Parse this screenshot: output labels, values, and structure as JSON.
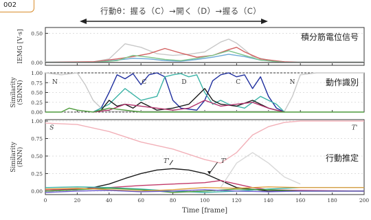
{
  "figure_tag": "002",
  "header": "行動θ：握る（C）→開く（D）→握る（C）",
  "chart_data": [
    {
      "type": "line",
      "ylabel": "IEMG [V·s]",
      "panel_title": "積分筋電位信号",
      "ylim": [
        -0.05,
        0.6
      ],
      "yticks": [
        "0.50",
        "0.00"
      ],
      "ytick_values": [
        0.5,
        0.0
      ],
      "series": [
        {
          "color": "#c8c8c8",
          "x": [
            0,
            30,
            40,
            50,
            60,
            70,
            80,
            90,
            100,
            110,
            115,
            120,
            125,
            130,
            140,
            150,
            160,
            200
          ],
          "values": [
            0.01,
            0.01,
            0.06,
            0.32,
            0.26,
            0.15,
            0.12,
            0.14,
            0.18,
            0.35,
            0.4,
            0.33,
            0.22,
            0.1,
            0.04,
            0.01,
            0.01,
            0.01
          ]
        },
        {
          "color": "#d26060",
          "x": [
            0,
            30,
            45,
            55,
            65,
            75,
            85,
            95,
            105,
            115,
            120,
            125,
            135,
            150,
            160,
            200
          ],
          "values": [
            0.0,
            0.01,
            0.06,
            0.1,
            0.15,
            0.24,
            0.16,
            0.09,
            0.12,
            0.22,
            0.26,
            0.18,
            0.06,
            0.01,
            0.0,
            0.0
          ]
        },
        {
          "color": "#6aa8d6",
          "x": [
            0,
            30,
            45,
            55,
            65,
            75,
            85,
            95,
            105,
            115,
            125,
            135,
            150,
            200
          ],
          "values": [
            0.0,
            0.0,
            0.04,
            0.07,
            0.06,
            0.03,
            0.02,
            0.05,
            0.09,
            0.14,
            0.1,
            0.04,
            0.0,
            0.0
          ]
        },
        {
          "color": "#7cc48a",
          "x": [
            0,
            30,
            45,
            55,
            65,
            75,
            85,
            95,
            105,
            115,
            125,
            135,
            150,
            200
          ],
          "values": [
            0.0,
            0.0,
            0.03,
            0.12,
            0.09,
            0.05,
            0.03,
            0.07,
            0.12,
            0.2,
            0.12,
            0.04,
            0.0,
            0.0
          ]
        },
        {
          "color": "#555555",
          "x": [
            0,
            200
          ],
          "values": [
            0.0,
            0.0
          ]
        }
      ]
    },
    {
      "type": "line",
      "ylabel": "Similarity (SDNN)",
      "panel_title": "動作識別",
      "ylim": [
        0,
        1.0
      ],
      "yticks": [
        "1.00",
        "0.75",
        "0.50",
        "0.25",
        "0.00"
      ],
      "ytick_values": [
        1.0,
        0.75,
        0.5,
        0.25,
        0.0
      ],
      "annotations": [
        {
          "text": "N",
          "x": 6,
          "y": 0.72
        },
        {
          "text": "C",
          "x": 62,
          "y": 0.72
        },
        {
          "text": "D",
          "x": 87,
          "y": 0.72
        },
        {
          "text": "C",
          "x": 121,
          "y": 0.72
        },
        {
          "text": "N",
          "x": 155,
          "y": 0.72
        }
      ],
      "series": [
        {
          "color": "#c8c8c8",
          "x": [
            0,
            10,
            20,
            25,
            30,
            35,
            40,
            150,
            155,
            160,
            170,
            200
          ],
          "values": [
            1.0,
            0.95,
            1.0,
            0.7,
            0.3,
            0.1,
            0.02,
            0.02,
            0.4,
            0.95,
            1.0,
            1.0
          ]
        },
        {
          "color": "#1f2f9e",
          "x": [
            30,
            35,
            40,
            45,
            50,
            55,
            60,
            65,
            70,
            75,
            80,
            85,
            95,
            100,
            105,
            110,
            115,
            120,
            125,
            130,
            135,
            140,
            145,
            150
          ],
          "values": [
            0.0,
            0.1,
            0.5,
            0.95,
            0.85,
            0.98,
            0.7,
            0.95,
            1.0,
            0.9,
            0.3,
            0.1,
            0.05,
            0.3,
            0.8,
            0.95,
            1.0,
            0.9,
            0.95,
            0.6,
            0.9,
            0.4,
            0.1,
            0.0
          ]
        },
        {
          "color": "#3bb3a6",
          "x": [
            30,
            40,
            50,
            60,
            70,
            75,
            80,
            85,
            90,
            95,
            100,
            105,
            110,
            115,
            125,
            135,
            145,
            150
          ],
          "values": [
            0.0,
            0.2,
            0.6,
            0.3,
            0.4,
            0.9,
            0.95,
            0.98,
            0.9,
            0.95,
            0.5,
            0.2,
            0.3,
            0.2,
            0.1,
            0.4,
            0.2,
            0.0
          ]
        },
        {
          "color": "#1a1a1a",
          "x": [
            30,
            35,
            40,
            45,
            50,
            55,
            60,
            65,
            70,
            80,
            90,
            95,
            100,
            105,
            110,
            120,
            130,
            140,
            145,
            150
          ],
          "values": [
            0.0,
            0.05,
            0.3,
            0.15,
            0.2,
            0.1,
            0.25,
            0.15,
            0.05,
            0.1,
            0.2,
            0.4,
            0.6,
            0.3,
            0.2,
            0.15,
            0.3,
            0.1,
            0.05,
            0.0
          ]
        },
        {
          "color": "#b0306a",
          "x": [
            30,
            40,
            50,
            60,
            70,
            80,
            90,
            100,
            110,
            120,
            130,
            140,
            150
          ],
          "values": [
            0.0,
            0.05,
            0.2,
            0.15,
            0.1,
            0.05,
            0.1,
            0.3,
            0.15,
            0.2,
            0.25,
            0.1,
            0.0
          ]
        },
        {
          "color": "#4c9a3a",
          "x": [
            0,
            10,
            15,
            20,
            30,
            40,
            50,
            60,
            150,
            160,
            200
          ],
          "values": [
            0.0,
            0.0,
            0.1,
            0.05,
            0.0,
            0.1,
            0.05,
            0.0,
            0.0,
            0.0,
            0.0
          ]
        }
      ]
    },
    {
      "type": "line",
      "ylabel": "Similarity (RNN)",
      "panel_title": "行動推定",
      "ylim": [
        -0.05,
        1.02
      ],
      "yticks": [
        "1.00",
        "0.75",
        "0.50",
        "0.25",
        "0.00"
      ],
      "ytick_values": [
        1.0,
        0.75,
        0.5,
        0.25,
        0.0
      ],
      "xlabel": "Time [frame]",
      "xlim": [
        0,
        200
      ],
      "xticks": [
        "0",
        "20",
        "40",
        "60",
        "80",
        "100",
        "120",
        "140",
        "160",
        "180",
        "200"
      ],
      "xtick_values": [
        0,
        20,
        40,
        60,
        80,
        100,
        120,
        140,
        160,
        180,
        200
      ],
      "annotations": [
        {
          "text": "S",
          "x": 4,
          "y": 0.88
        },
        {
          "text": "T'",
          "x": 194,
          "y": 0.88
        },
        {
          "text": "T'",
          "x": 76,
          "y": 0.4
        },
        {
          "text": "T'",
          "x": 112,
          "y": 0.4
        }
      ],
      "series": [
        {
          "color": "#f2b0b8",
          "x": [
            0,
            20,
            40,
            60,
            80,
            100,
            110,
            120,
            130,
            140,
            150,
            160,
            200
          ],
          "values": [
            0.97,
            0.95,
            0.85,
            0.7,
            0.6,
            0.45,
            0.4,
            0.55,
            0.8,
            0.92,
            0.98,
            1.0,
            1.0
          ]
        },
        {
          "color": "#1a1a1a",
          "x": [
            0,
            20,
            30,
            40,
            50,
            60,
            70,
            80,
            90,
            100,
            105,
            110,
            120,
            140,
            160,
            200
          ],
          "values": [
            0.0,
            0.02,
            0.05,
            0.1,
            0.18,
            0.25,
            0.3,
            0.32,
            0.3,
            0.25,
            0.2,
            0.15,
            0.05,
            0.0,
            0.0,
            0.0
          ]
        },
        {
          "color": "#c23a6a",
          "x": [
            0,
            20,
            40,
            60,
            80,
            100,
            110,
            120,
            130,
            140,
            160,
            200
          ],
          "values": [
            0.02,
            0.03,
            0.05,
            0.08,
            0.1,
            0.12,
            0.15,
            0.1,
            0.05,
            0.02,
            0.01,
            0.0
          ]
        },
        {
          "color": "#3bb3a6",
          "x": [
            0,
            20,
            40,
            60,
            80,
            100,
            120,
            140,
            160,
            200
          ],
          "values": [
            0.05,
            0.06,
            0.05,
            0.03,
            0.0,
            -0.02,
            0.0,
            0.03,
            0.05,
            0.05
          ]
        },
        {
          "color": "#4c9a3a",
          "x": [
            0,
            20,
            40,
            60,
            80,
            100,
            120,
            140,
            160,
            200
          ],
          "values": [
            0.0,
            0.02,
            0.04,
            0.02,
            -0.02,
            0.0,
            0.03,
            0.02,
            0.0,
            0.0
          ]
        },
        {
          "color": "#e0a040",
          "x": [
            0,
            20,
            40,
            60,
            80,
            100,
            120,
            140,
            160,
            200
          ],
          "values": [
            0.03,
            0.04,
            0.02,
            0.0,
            0.02,
            0.05,
            0.04,
            0.06,
            0.05,
            0.05
          ]
        },
        {
          "color": "#6a5acd",
          "x": [
            0,
            20,
            40,
            60,
            80,
            100,
            120,
            140,
            160,
            200
          ],
          "values": [
            -0.02,
            0.0,
            0.01,
            -0.01,
            0.0,
            0.02,
            0.0,
            -0.01,
            0.0,
            0.0
          ]
        },
        {
          "color": "#d8d8d8",
          "x": [
            110,
            120,
            130,
            140,
            150,
            160
          ],
          "values": [
            0.05,
            0.4,
            0.55,
            0.4,
            0.2,
            0.1
          ]
        }
      ]
    }
  ]
}
